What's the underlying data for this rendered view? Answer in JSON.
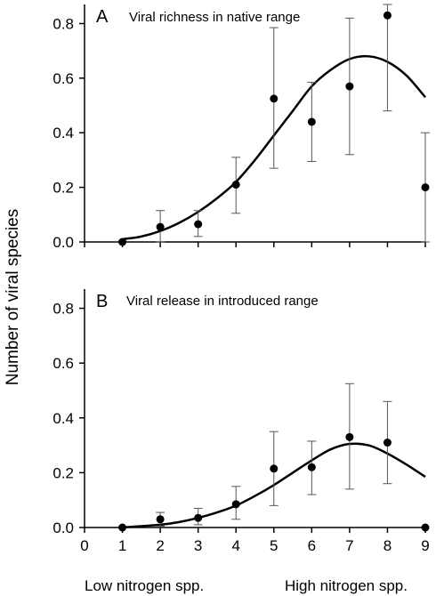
{
  "ylabel": "Number of viral species",
  "xnote_left": "Low nitrogen spp.",
  "xnote_right": "High nitrogen spp.",
  "chart_data": [
    {
      "type": "scatter",
      "panel_label": "A",
      "title": "Viral richness in native range",
      "x": [
        1,
        2,
        3,
        4,
        5,
        6,
        7,
        8,
        9
      ],
      "y": [
        0.0,
        0.055,
        0.065,
        0.21,
        0.525,
        0.44,
        0.57,
        0.83,
        0.2
      ],
      "err_low": [
        0.0,
        0.0,
        0.02,
        0.105,
        0.27,
        0.295,
        0.32,
        0.48,
        0.0
      ],
      "err_high": [
        0.0,
        0.115,
        0.115,
        0.31,
        0.785,
        0.585,
        0.82,
        0.87,
        0.4
      ],
      "fit_x": [
        1.0,
        1.5,
        2.0,
        2.5,
        3.0,
        3.5,
        4.0,
        4.5,
        5.0,
        5.5,
        6.0,
        6.5,
        7.0,
        7.5,
        8.0,
        8.5,
        9.0
      ],
      "fit_y": [
        0.01,
        0.02,
        0.04,
        0.07,
        0.11,
        0.16,
        0.22,
        0.3,
        0.39,
        0.48,
        0.57,
        0.63,
        0.67,
        0.68,
        0.66,
        0.61,
        0.53
      ],
      "xlim": [
        0,
        9
      ],
      "ylim": [
        0,
        0.87
      ],
      "yticks": [
        "0.0",
        "0.2",
        "0.4",
        "0.6",
        "0.8"
      ],
      "ytick_values": [
        0,
        0.2,
        0.4,
        0.6,
        0.8
      ],
      "show_xtick_labels": false
    },
    {
      "type": "scatter",
      "panel_label": "B",
      "title": "Viral release in introduced range",
      "x": [
        1,
        2,
        3,
        4,
        5,
        6,
        7,
        8,
        9
      ],
      "y": [
        0.0,
        0.03,
        0.035,
        0.085,
        0.215,
        0.22,
        0.33,
        0.31,
        0.0
      ],
      "err_low": [
        0.0,
        0.005,
        0.01,
        0.03,
        0.08,
        0.12,
        0.14,
        0.16,
        0.0
      ],
      "err_high": [
        0.0,
        0.055,
        0.07,
        0.15,
        0.35,
        0.315,
        0.525,
        0.46,
        0.0
      ],
      "fit_x": [
        1.0,
        1.5,
        2.0,
        2.5,
        3.0,
        3.5,
        4.0,
        4.5,
        5.0,
        5.5,
        6.0,
        6.5,
        7.0,
        7.5,
        8.0,
        8.5,
        9.0
      ],
      "fit_y": [
        0.0,
        0.005,
        0.01,
        0.02,
        0.035,
        0.055,
        0.08,
        0.115,
        0.155,
        0.2,
        0.245,
        0.285,
        0.305,
        0.3,
        0.27,
        0.23,
        0.185
      ],
      "xlim": [
        0,
        9
      ],
      "ylim": [
        0,
        0.87
      ],
      "yticks": [
        "0.0",
        "0.2",
        "0.4",
        "0.6",
        "0.8"
      ],
      "ytick_values": [
        0,
        0.2,
        0.4,
        0.6,
        0.8
      ],
      "xticks": [
        "0",
        "1",
        "2",
        "3",
        "4",
        "5",
        "6",
        "7",
        "8",
        "9"
      ],
      "xtick_values": [
        0,
        1,
        2,
        3,
        4,
        5,
        6,
        7,
        8,
        9
      ],
      "show_xtick_labels": true
    }
  ]
}
